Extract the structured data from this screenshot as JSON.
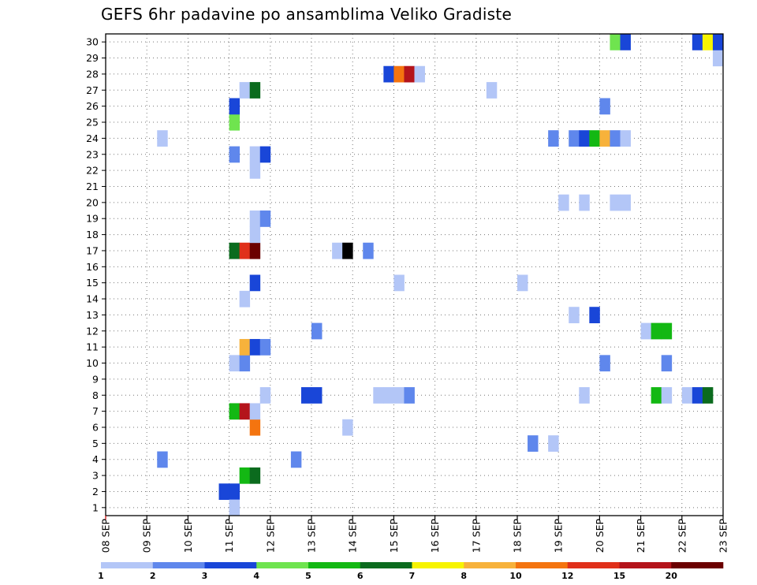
{
  "title": "GEFS 6hr padavine po ansamblima Veliko Gradiste",
  "chart_data": {
    "type": "heatmap",
    "title": "GEFS 6hr padavine po ansamblima Veliko Gradiste",
    "x_tick_labels": [
      "08 SEP",
      "09 SEP",
      "10 SEP",
      "11 SEP",
      "12 SEP",
      "13 SEP",
      "14 SEP",
      "15 SEP",
      "16 SEP",
      "17 SEP",
      "18 SEP",
      "19 SEP",
      "20 SEP",
      "21 SEP",
      "22 SEP",
      "23 SEP"
    ],
    "y_tick_labels": [
      "1",
      "2",
      "3",
      "4",
      "5",
      "6",
      "7",
      "8",
      "9",
      "10",
      "11",
      "12",
      "13",
      "14",
      "15",
      "16",
      "17",
      "18",
      "19",
      "20",
      "21",
      "22",
      "23",
      "24",
      "25",
      "26",
      "27",
      "28",
      "29",
      "30"
    ],
    "xlim": [
      0,
      60
    ],
    "ylim": [
      0,
      30
    ],
    "grid": true,
    "legend": {
      "position": "bottom",
      "labels": [
        "1",
        "2",
        "3",
        "4",
        "5",
        "6",
        "7",
        "8",
        "10",
        "12",
        "15",
        "20"
      ],
      "colors": [
        "#b3c6f7",
        "#5f87ec",
        "#1946d8",
        "#6fe44f",
        "#13b813",
        "#0b6b1e",
        "#f7f400",
        "#f7b23b",
        "#f4740f",
        "#e0301a",
        "#b4141b",
        "#6b0000"
      ]
    },
    "cells": [
      {
        "step": 11,
        "member": 2,
        "level": 3
      },
      {
        "step": 12,
        "member": 2,
        "level": 3
      },
      {
        "step": 12,
        "member": 1,
        "level": 1
      },
      {
        "step": 13,
        "member": 3,
        "level": 5
      },
      {
        "step": 14,
        "member": 3,
        "level": 6
      },
      {
        "step": 5,
        "member": 4,
        "level": 2
      },
      {
        "step": 18,
        "member": 4,
        "level": 2
      },
      {
        "step": 41,
        "member": 5,
        "level": 2
      },
      {
        "step": 43,
        "member": 5,
        "level": 1
      },
      {
        "step": 14,
        "member": 6,
        "level": 9
      },
      {
        "step": 23,
        "member": 6,
        "level": 1
      },
      {
        "step": 12,
        "member": 7,
        "level": 5
      },
      {
        "step": 13,
        "member": 7,
        "level": 11
      },
      {
        "step": 14,
        "member": 7,
        "level": 1
      },
      {
        "step": 15,
        "member": 8,
        "level": 1
      },
      {
        "step": 19,
        "member": 8,
        "level": 3
      },
      {
        "step": 20,
        "member": 8,
        "level": 3
      },
      {
        "step": 26,
        "member": 8,
        "level": 1
      },
      {
        "step": 27,
        "member": 8,
        "level": 1
      },
      {
        "step": 28,
        "member": 8,
        "level": 1
      },
      {
        "step": 29,
        "member": 8,
        "level": 2
      },
      {
        "step": 46,
        "member": 8,
        "level": 1
      },
      {
        "step": 53,
        "member": 8,
        "level": 5
      },
      {
        "step": 54,
        "member": 8,
        "level": 1
      },
      {
        "step": 56,
        "member": 8,
        "level": 1
      },
      {
        "step": 57,
        "member": 8,
        "level": 3
      },
      {
        "step": 58,
        "member": 8,
        "level": 6
      },
      {
        "step": 12,
        "member": 10,
        "level": 1
      },
      {
        "step": 13,
        "member": 10,
        "level": 2
      },
      {
        "step": 48,
        "member": 10,
        "level": 2
      },
      {
        "step": 54,
        "member": 10,
        "level": 2
      },
      {
        "step": 13,
        "member": 11,
        "level": 8
      },
      {
        "step": 14,
        "member": 11,
        "level": 3
      },
      {
        "step": 15,
        "member": 11,
        "level": 2
      },
      {
        "step": 20,
        "member": 12,
        "level": 2
      },
      {
        "step": 52,
        "member": 12,
        "level": 1
      },
      {
        "step": 53,
        "member": 12,
        "level": 5
      },
      {
        "step": 54,
        "member": 12,
        "level": 5
      },
      {
        "step": 45,
        "member": 13,
        "level": 1
      },
      {
        "step": 47,
        "member": 13,
        "level": 3
      },
      {
        "step": 13,
        "member": 14,
        "level": 1
      },
      {
        "step": 14,
        "member": 15,
        "level": 3
      },
      {
        "step": 28,
        "member": 15,
        "level": 1
      },
      {
        "step": 40,
        "member": 15,
        "level": 1
      },
      {
        "step": 12,
        "member": 17,
        "level": 6
      },
      {
        "step": 13,
        "member": 17,
        "level": 10
      },
      {
        "step": 14,
        "member": 17,
        "level": 12
      },
      {
        "step": 22,
        "member": 17,
        "level": 1
      },
      {
        "step": 23,
        "member": 17,
        "level": 13
      },
      {
        "step": 25,
        "member": 17,
        "level": 2
      },
      {
        "step": 14,
        "member": 18,
        "level": 1
      },
      {
        "step": 14,
        "member": 19,
        "level": 1
      },
      {
        "step": 15,
        "member": 19,
        "level": 2
      },
      {
        "step": 44,
        "member": 20,
        "level": 1
      },
      {
        "step": 46,
        "member": 20,
        "level": 1
      },
      {
        "step": 49,
        "member": 20,
        "level": 1
      },
      {
        "step": 50,
        "member": 20,
        "level": 1
      },
      {
        "step": 14,
        "member": 22,
        "level": 1
      },
      {
        "step": 12,
        "member": 23,
        "level": 2
      },
      {
        "step": 14,
        "member": 23,
        "level": 1
      },
      {
        "step": 15,
        "member": 23,
        "level": 3
      },
      {
        "step": 5,
        "member": 24,
        "level": 1
      },
      {
        "step": 43,
        "member": 24,
        "level": 2
      },
      {
        "step": 45,
        "member": 24,
        "level": 2
      },
      {
        "step": 46,
        "member": 24,
        "level": 3
      },
      {
        "step": 47,
        "member": 24,
        "level": 5
      },
      {
        "step": 48,
        "member": 24,
        "level": 8
      },
      {
        "step": 49,
        "member": 24,
        "level": 2
      },
      {
        "step": 50,
        "member": 24,
        "level": 1
      },
      {
        "step": 12,
        "member": 25,
        "level": 4
      },
      {
        "step": 12,
        "member": 26,
        "level": 3
      },
      {
        "step": 48,
        "member": 26,
        "level": 2
      },
      {
        "step": 13,
        "member": 27,
        "level": 1
      },
      {
        "step": 14,
        "member": 27,
        "level": 6
      },
      {
        "step": 37,
        "member": 27,
        "level": 1
      },
      {
        "step": 27,
        "member": 28,
        "level": 3
      },
      {
        "step": 28,
        "member": 28,
        "level": 9
      },
      {
        "step": 29,
        "member": 28,
        "level": 11
      },
      {
        "step": 30,
        "member": 28,
        "level": 1
      },
      {
        "step": 59,
        "member": 29,
        "level": 1
      },
      {
        "step": 49,
        "member": 30,
        "level": 4
      },
      {
        "step": 50,
        "member": 30,
        "level": 3
      },
      {
        "step": 57,
        "member": 30,
        "level": 3
      },
      {
        "step": 58,
        "member": 30,
        "level": 7
      },
      {
        "step": 59,
        "member": 30,
        "level": 3
      }
    ]
  }
}
